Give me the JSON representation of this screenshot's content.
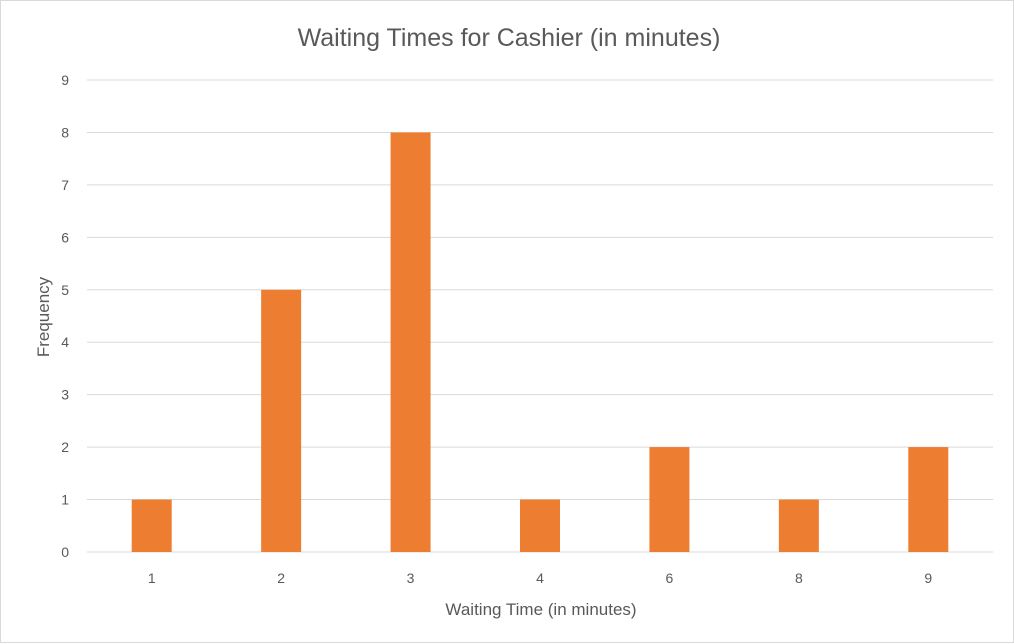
{
  "chart_data": {
    "type": "bar",
    "title": "Waiting Times for Cashier (in minutes)",
    "xlabel": "Waiting Time (in minutes)",
    "ylabel": "Frequency",
    "categories": [
      "1",
      "2",
      "3",
      "4",
      "6",
      "8",
      "9"
    ],
    "series": [
      {
        "values": [
          1,
          5,
          8,
          1,
          2,
          1,
          2
        ]
      }
    ],
    "ylim": [
      0,
      9
    ],
    "yticks": [
      "0",
      "1",
      "2",
      "3",
      "4",
      "5",
      "6",
      "7",
      "8",
      "9"
    ],
    "grid": true,
    "legend": "none",
    "colors": {
      "bar": "#ed7d31",
      "grid": "#d9d9d9",
      "text": "#595959",
      "border": "#d9d9d9",
      "background": "#ffffff"
    }
  }
}
